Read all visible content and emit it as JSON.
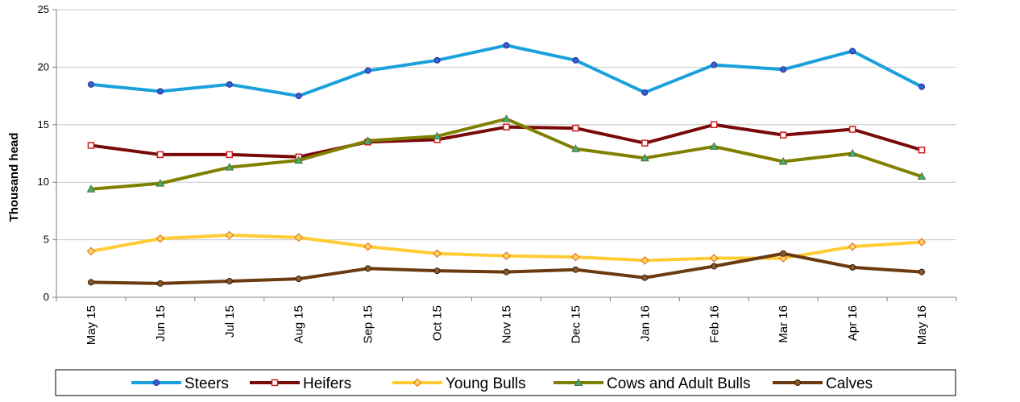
{
  "chart_data": {
    "type": "line",
    "ylabel": "Thousand head",
    "ylim": [
      0,
      25
    ],
    "yticks": [
      0,
      5,
      10,
      15,
      20,
      25
    ],
    "grid": true,
    "legend_position": "bottom",
    "categories": [
      "May 15",
      "Jun 15",
      "Jul 15",
      "Aug 15",
      "Sep 15",
      "Oct 15",
      "Nov 15",
      "Dec 15",
      "Jan 16",
      "Feb 16",
      "Mar 16",
      "Apr 16",
      "May 16"
    ],
    "series": [
      {
        "name": "Steers",
        "color": "#1aa1dc",
        "marker": "circle",
        "marker_fill": "#3a5fd6",
        "values": [
          18.5,
          17.9,
          18.5,
          17.5,
          19.7,
          20.6,
          21.9,
          20.6,
          17.8,
          20.2,
          19.8,
          21.4,
          18.3
        ]
      },
      {
        "name": "Heifers",
        "color": "#7a0a0a",
        "marker": "square",
        "marker_fill": "#ffffff",
        "marker_stroke": "#d11a1a",
        "values": [
          13.2,
          12.4,
          12.4,
          12.2,
          13.5,
          13.7,
          14.8,
          14.7,
          13.4,
          15.0,
          14.1,
          14.6,
          12.8
        ]
      },
      {
        "name": "Young Bulls",
        "color": "#ffcc33",
        "marker": "diamond",
        "marker_fill": "#ffd966",
        "marker_stroke": "#e8741a",
        "values": [
          4.0,
          5.1,
          5.4,
          5.2,
          4.4,
          3.8,
          3.6,
          3.5,
          3.2,
          3.4,
          3.4,
          4.4,
          4.8
        ]
      },
      {
        "name": "Cows and Adult Bulls",
        "color": "#808000",
        "marker": "triangle",
        "marker_fill": "#3cb37a",
        "values": [
          9.4,
          9.9,
          11.3,
          11.9,
          13.6,
          14.0,
          15.5,
          12.9,
          12.1,
          13.1,
          11.8,
          12.5,
          10.5
        ]
      },
      {
        "name": "Calves",
        "color": "#6b3a10",
        "marker": "circle",
        "marker_fill": "#8a5a2a",
        "values": [
          1.3,
          1.2,
          1.4,
          1.6,
          2.5,
          2.3,
          2.2,
          2.4,
          1.7,
          2.7,
          3.8,
          2.6,
          2.2
        ]
      }
    ]
  }
}
